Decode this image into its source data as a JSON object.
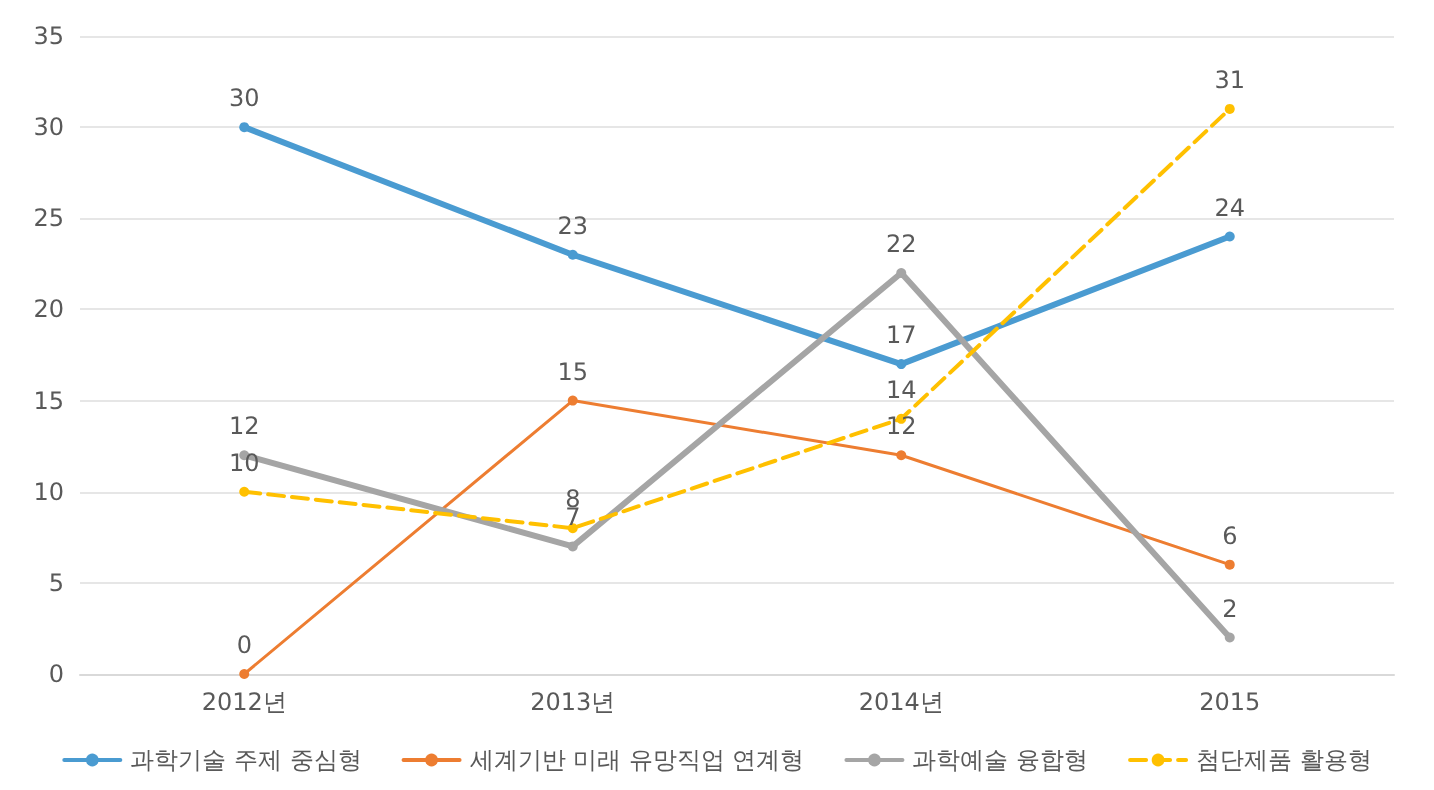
{
  "chart_data": {
    "type": "line",
    "categories": [
      "2012년",
      "2013년",
      "2014년",
      "2015"
    ],
    "series": [
      {
        "name": "과학기술 주제 중심형",
        "color": "#4a9bd1",
        "values": [
          30,
          23,
          17,
          24
        ]
      },
      {
        "name": "세계기반 미래 유망직업 연계형",
        "color": "#ed7d31",
        "values": [
          0,
          15,
          12,
          6
        ]
      },
      {
        "name": "과학예술 융합형",
        "color": "#a5a5a5",
        "values": [
          12,
          7,
          22,
          2
        ]
      },
      {
        "name": "첨단제품 활용형",
        "color": "#ffc000",
        "values": [
          10,
          8,
          14,
          31
        ],
        "line_style": "dashed"
      }
    ],
    "ylim": [
      0,
      35
    ],
    "yticks": [
      0,
      5,
      10,
      15,
      20,
      25,
      30,
      35
    ],
    "grid": "y",
    "legend": "bottom",
    "marker": "circle",
    "data_labels": true
  }
}
